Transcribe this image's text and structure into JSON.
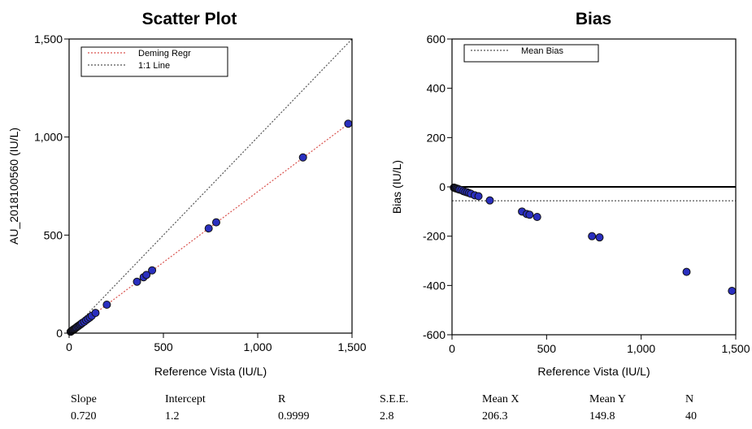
{
  "chart_data": [
    {
      "type": "scatter",
      "title": "Scatter Plot",
      "xlabel": "Reference Vista (IU/L)",
      "ylabel": "AU_2018100560 (IU/L)",
      "xlim": [
        0,
        1500
      ],
      "ylim": [
        0,
        1500
      ],
      "xticks": [
        {
          "v": 0,
          "label": "0"
        },
        {
          "v": 500,
          "label": "500"
        },
        {
          "v": 1000,
          "label": "1,000"
        },
        {
          "v": 1500,
          "label": "1,500"
        }
      ],
      "yticks": [
        {
          "v": 0,
          "label": "0"
        },
        {
          "v": 500,
          "label": "500"
        },
        {
          "v": 1000,
          "label": "1,000"
        },
        {
          "v": 1500,
          "label": "1,500"
        }
      ],
      "legend_position": "top-left",
      "legend": [
        "Deming Regr",
        "1:1 Line"
      ],
      "lines": [
        {
          "name": "Deming Regr",
          "style": "dotted",
          "color": "#d9534f",
          "x": [
            0,
            1500
          ],
          "y": [
            1.2,
            1081.2
          ]
        },
        {
          "name": "1:1 Line",
          "style": "dotted",
          "color": "#555555",
          "x": [
            0,
            1500
          ],
          "y": [
            0,
            1500
          ]
        }
      ],
      "points": {
        "x": [
          8,
          12,
          16,
          20,
          24,
          28,
          32,
          36,
          40,
          45,
          50,
          55,
          60,
          65,
          70,
          80,
          90,
          100,
          110,
          120,
          140,
          200,
          360,
          395,
          410,
          440,
          740,
          780,
          1240,
          1480
        ],
        "y": [
          7,
          10,
          13,
          16,
          19,
          21,
          24,
          27,
          30,
          34,
          37,
          41,
          44,
          48,
          52,
          58,
          66,
          73,
          80,
          88,
          103,
          145,
          262,
          285,
          297,
          320,
          534,
          565,
          896,
          1068
        ]
      }
    },
    {
      "type": "scatter",
      "title": "Bias",
      "xlabel": "Reference Vista (IU/L)",
      "ylabel": "Bias (IU/L)",
      "xlim": [
        0,
        1500
      ],
      "ylim": [
        -600,
        600
      ],
      "xticks": [
        {
          "v": 0,
          "label": "0"
        },
        {
          "v": 500,
          "label": "500"
        },
        {
          "v": 1000,
          "label": "1,000"
        },
        {
          "v": 1500,
          "label": "1,500"
        }
      ],
      "yticks": [
        {
          "v": 600,
          "label": "600"
        },
        {
          "v": 400,
          "label": "400"
        },
        {
          "v": 200,
          "label": "200"
        },
        {
          "v": 0,
          "label": "0"
        },
        {
          "v": -200,
          "label": "-200"
        },
        {
          "v": -400,
          "label": "-400"
        },
        {
          "v": -600,
          "label": "-600"
        }
      ],
      "legend_position": "top-left",
      "legend": [
        "Mean Bias"
      ],
      "lines": [
        {
          "name": "zero",
          "style": "solid",
          "color": "#000000",
          "y": 0
        },
        {
          "name": "Mean Bias",
          "style": "dotted",
          "color": "#555555",
          "y": -56.5
        }
      ],
      "points": {
        "x": [
          10,
          15,
          20,
          25,
          30,
          35,
          40,
          50,
          60,
          70,
          80,
          90,
          100,
          120,
          140,
          200,
          370,
          395,
          410,
          450,
          740,
          780,
          1240,
          1480
        ],
        "y": [
          -3,
          -4,
          -6,
          -7,
          -8,
          -10,
          -11,
          -13,
          -17,
          -20,
          -22,
          -25,
          -28,
          -34,
          -38,
          -55,
          -100,
          -110,
          -113,
          -122,
          -200,
          -205,
          -345,
          -422
        ]
      }
    }
  ],
  "stats": [
    {
      "label": "Slope",
      "value": "0.720"
    },
    {
      "label": "Intercept",
      "value": "1.2"
    },
    {
      "label": "R",
      "value": "0.9999"
    },
    {
      "label": "S.E.E.",
      "value": "2.8"
    },
    {
      "label": "Mean X",
      "value": "206.3"
    },
    {
      "label": "Mean Y",
      "value": "149.8"
    },
    {
      "label": "N",
      "value": "40"
    }
  ]
}
